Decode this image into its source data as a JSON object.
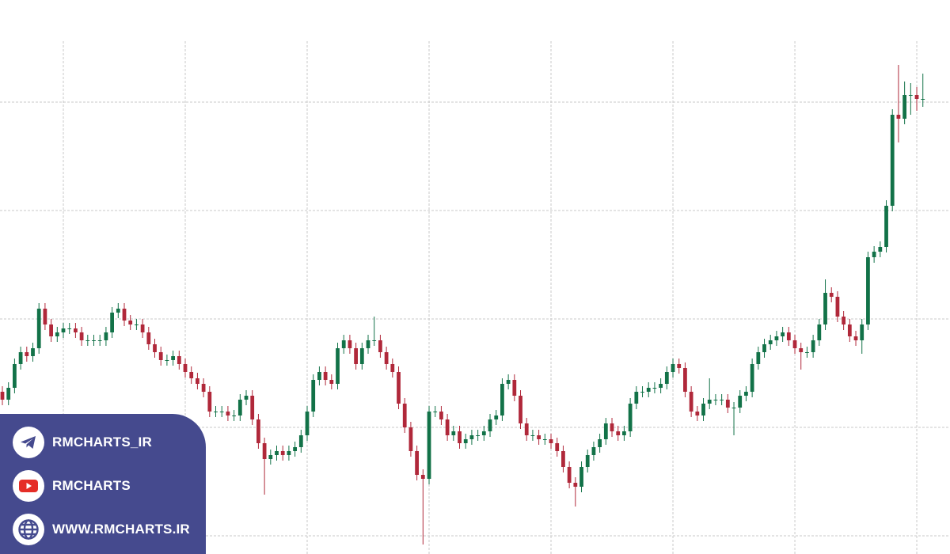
{
  "chart_data": {
    "type": "candlestick",
    "up_color": "#127248",
    "down_color": "#b0283a",
    "grid": true,
    "xlim": [
      -0.39,
      155.45
    ],
    "xticks": [
      10,
      30,
      50,
      70,
      90,
      110,
      130,
      150
    ],
    "ylim": [
      0,
      700
    ],
    "yticks": [
      23,
      160,
      297,
      434,
      571
    ],
    "open": [
      205,
      195,
      210,
      240,
      255,
      250,
      260,
      310,
      290,
      275,
      280,
      285,
      285,
      280,
      270,
      270,
      270,
      270,
      280,
      305,
      310,
      295,
      290,
      290,
      280,
      265,
      255,
      245,
      245,
      250,
      240,
      230,
      222,
      215,
      205,
      180,
      180,
      180,
      175,
      175,
      195,
      200,
      170,
      140,
      120,
      125,
      130,
      125,
      130,
      135,
      150,
      180,
      220,
      230,
      220,
      215,
      260,
      270,
      260,
      240,
      260,
      270,
      270,
      255,
      240,
      230,
      190,
      160,
      130,
      100,
      95,
      180,
      180,
      170,
      150,
      155,
      140,
      145,
      150,
      150,
      155,
      170,
      175,
      215,
      220,
      200,
      165,
      150,
      150,
      145,
      145,
      140,
      130,
      110,
      90,
      85,
      110,
      125,
      135,
      145,
      165,
      155,
      150,
      155,
      190,
      205,
      205,
      210,
      210,
      215,
      230,
      240,
      235,
      205,
      180,
      175,
      190,
      195,
      195,
      195,
      185,
      185,
      200,
      205,
      240,
      255,
      265,
      270,
      275,
      280,
      270,
      260,
      255,
      255,
      270,
      290,
      330,
      325,
      300,
      290,
      275,
      270,
      290,
      375,
      382,
      388,
      440,
      555,
      550,
      580,
      580,
      575
    ],
    "high": [
      212,
      217,
      247,
      262,
      262,
      267,
      317,
      317,
      297,
      287,
      292,
      292,
      292,
      287,
      277,
      277,
      277,
      287,
      312,
      317,
      317,
      302,
      297,
      297,
      287,
      272,
      262,
      252,
      257,
      257,
      247,
      237,
      229,
      222,
      212,
      187,
      187,
      187,
      182,
      202,
      207,
      207,
      177,
      147,
      132,
      137,
      137,
      137,
      142,
      157,
      187,
      227,
      237,
      237,
      227,
      267,
      277,
      277,
      267,
      267,
      277,
      300,
      277,
      262,
      247,
      237,
      197,
      167,
      137,
      107,
      187,
      187,
      187,
      177,
      162,
      162,
      152,
      157,
      157,
      162,
      177,
      182,
      222,
      227,
      227,
      207,
      172,
      157,
      157,
      152,
      152,
      147,
      137,
      117,
      97,
      117,
      132,
      142,
      152,
      172,
      172,
      162,
      162,
      197,
      212,
      212,
      217,
      217,
      222,
      237,
      247,
      247,
      242,
      212,
      187,
      197,
      222,
      202,
      202,
      202,
      192,
      207,
      212,
      247,
      262,
      272,
      277,
      282,
      287,
      287,
      277,
      267,
      262,
      277,
      297,
      347,
      337,
      332,
      307,
      297,
      282,
      297,
      382,
      389,
      395,
      447,
      562,
      618,
      597,
      595,
      590,
      607
    ],
    "low": [
      188,
      188,
      203,
      233,
      243,
      243,
      253,
      283,
      268,
      268,
      273,
      278,
      273,
      263,
      263,
      263,
      263,
      263,
      273,
      298,
      288,
      283,
      283,
      273,
      258,
      248,
      238,
      238,
      238,
      233,
      223,
      215,
      208,
      198,
      173,
      173,
      173,
      168,
      168,
      168,
      188,
      163,
      133,
      75,
      113,
      118,
      118,
      118,
      123,
      128,
      143,
      173,
      213,
      213,
      208,
      208,
      253,
      253,
      233,
      233,
      253,
      263,
      248,
      233,
      223,
      183,
      153,
      123,
      93,
      12,
      88,
      173,
      163,
      143,
      143,
      133,
      133,
      138,
      143,
      143,
      148,
      163,
      168,
      208,
      193,
      158,
      143,
      143,
      138,
      138,
      133,
      123,
      103,
      83,
      60,
      78,
      103,
      118,
      128,
      138,
      148,
      143,
      143,
      148,
      183,
      198,
      198,
      203,
      203,
      208,
      223,
      228,
      198,
      173,
      168,
      168,
      183,
      188,
      188,
      178,
      150,
      178,
      193,
      198,
      233,
      248,
      258,
      263,
      268,
      263,
      253,
      233,
      248,
      248,
      263,
      283,
      318,
      293,
      283,
      268,
      263,
      253,
      283,
      368,
      375,
      381,
      433,
      520,
      543,
      555,
      560,
      565
    ],
    "close": [
      195,
      210,
      240,
      255,
      250,
      260,
      310,
      290,
      275,
      280,
      285,
      285,
      280,
      270,
      270,
      270,
      270,
      280,
      305,
      310,
      295,
      290,
      290,
      280,
      265,
      255,
      245,
      245,
      250,
      240,
      230,
      222,
      215,
      205,
      180,
      180,
      180,
      175,
      175,
      195,
      200,
      170,
      140,
      120,
      125,
      130,
      125,
      130,
      135,
      150,
      180,
      220,
      230,
      220,
      215,
      260,
      270,
      260,
      240,
      260,
      270,
      270,
      255,
      240,
      230,
      190,
      160,
      130,
      100,
      95,
      180,
      180,
      170,
      150,
      155,
      140,
      145,
      150,
      150,
      155,
      170,
      175,
      215,
      220,
      200,
      165,
      150,
      150,
      145,
      145,
      140,
      130,
      110,
      90,
      85,
      110,
      125,
      135,
      145,
      165,
      155,
      150,
      155,
      190,
      205,
      205,
      210,
      210,
      215,
      230,
      240,
      235,
      205,
      180,
      175,
      190,
      195,
      195,
      195,
      185,
      185,
      200,
      205,
      240,
      255,
      265,
      270,
      275,
      280,
      270,
      260,
      255,
      255,
      270,
      290,
      330,
      325,
      300,
      290,
      275,
      270,
      290,
      375,
      382,
      388,
      440,
      555,
      550,
      580,
      580,
      575,
      575
    ]
  },
  "badge": {
    "items": [
      "RMCHARTS_IR",
      "RMCHARTS",
      "WWW.RMCHARTS.IR"
    ]
  }
}
